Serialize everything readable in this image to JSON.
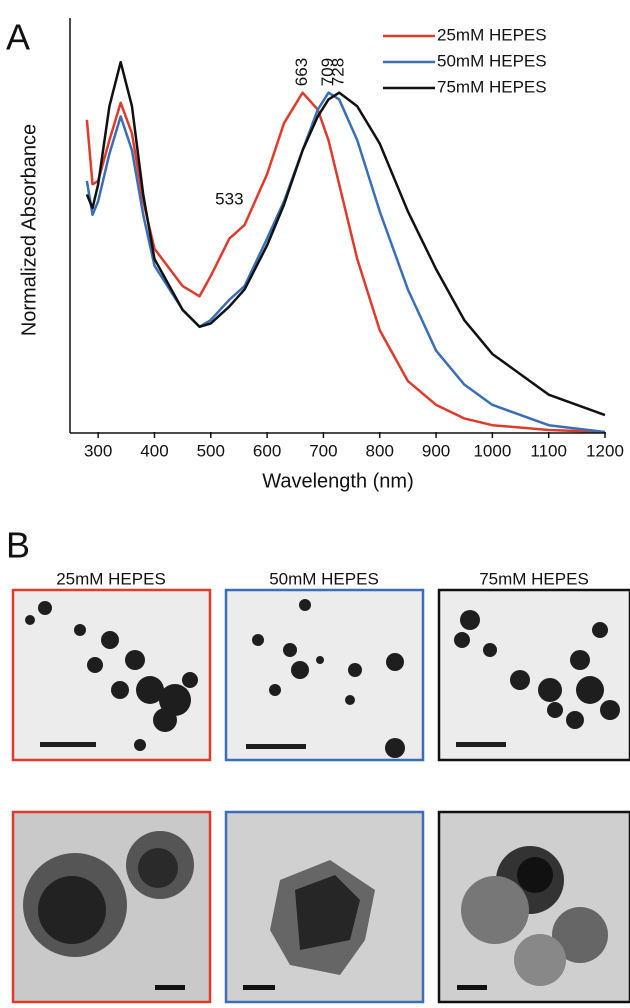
{
  "panel_labels": [
    "A",
    "B"
  ],
  "micrographs": {
    "titles": [
      "25mM HEPES",
      "50mM HEPES",
      "75mM HEPES"
    ]
  },
  "chart_data": {
    "type": "line",
    "x_label": "Wavelength (nm)",
    "y_label": "Normalized Absorbance",
    "x": [
      280,
      290,
      300,
      320,
      340,
      360,
      380,
      400,
      450,
      480,
      500,
      533,
      560,
      600,
      630,
      663,
      690,
      709,
      728,
      760,
      800,
      850,
      900,
      950,
      1000,
      1100,
      1200
    ],
    "series": [
      {
        "name": "25mM HEPES",
        "color": "#e03a2a",
        "values": [
          0.92,
          0.73,
          0.74,
          0.86,
          0.97,
          0.88,
          0.68,
          0.54,
          0.43,
          0.4,
          0.46,
          0.57,
          0.61,
          0.76,
          0.91,
          1.0,
          0.95,
          0.86,
          0.73,
          0.51,
          0.3,
          0.15,
          0.08,
          0.04,
          0.02,
          0.006,
          0.0
        ]
      },
      {
        "name": "50mM HEPES",
        "color": "#3a6fb5",
        "values": [
          0.74,
          0.64,
          0.68,
          0.82,
          0.93,
          0.83,
          0.64,
          0.49,
          0.36,
          0.31,
          0.33,
          0.39,
          0.43,
          0.57,
          0.68,
          0.83,
          0.95,
          1.0,
          0.98,
          0.86,
          0.65,
          0.42,
          0.24,
          0.14,
          0.08,
          0.02,
          0.0
        ]
      },
      {
        "name": "75mM HEPES",
        "color": "#111111",
        "values": [
          0.7,
          0.66,
          0.73,
          0.96,
          1.09,
          0.96,
          0.7,
          0.51,
          0.36,
          0.31,
          0.32,
          0.37,
          0.42,
          0.55,
          0.67,
          0.83,
          0.93,
          0.98,
          1.0,
          0.96,
          0.85,
          0.65,
          0.48,
          0.33,
          0.23,
          0.11,
          0.05
        ]
      }
    ],
    "annotations": [
      {
        "text": "663",
        "x": 663,
        "color": "#e03a2a"
      },
      {
        "text": "709",
        "x": 709,
        "color": "#3a6fb5"
      },
      {
        "text": "728",
        "x": 728,
        "color": "#111111"
      },
      {
        "text": "533",
        "x": 533,
        "color": "#111111"
      }
    ],
    "xlim": [
      250,
      1200
    ],
    "ylim": [
      0,
      1.22
    ],
    "xticks": [
      300,
      400,
      500,
      600,
      700,
      800,
      900,
      1000,
      1100,
      1200
    ],
    "legend": "top-right"
  }
}
